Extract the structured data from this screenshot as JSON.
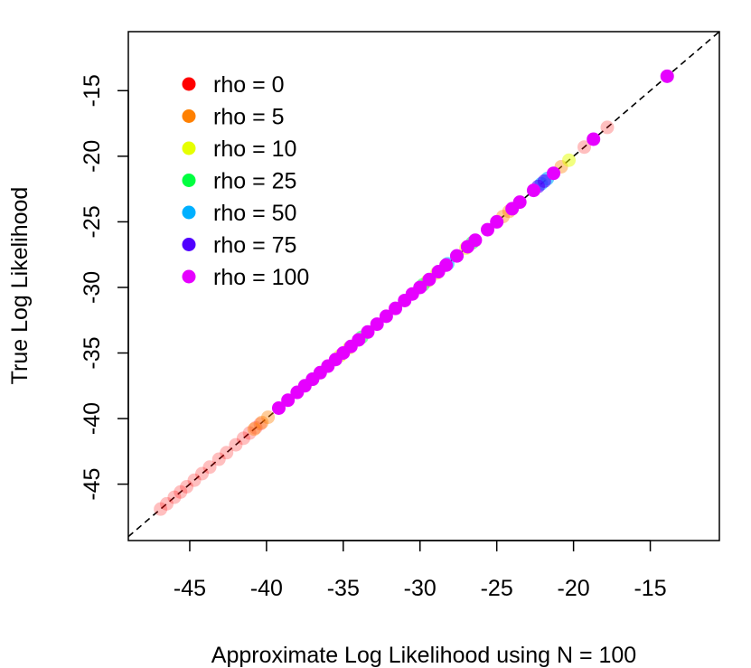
{
  "chart_data": {
    "type": "scatter",
    "title": "",
    "xlabel": "Approximate Log Likelihood using N = 100",
    "ylabel": "True Log Likelihood",
    "xlim": [
      -49.0,
      -10.5
    ],
    "ylim": [
      -49.3,
      -10.5
    ],
    "xticks": [
      -45,
      -40,
      -35,
      -30,
      -25,
      -20,
      -15
    ],
    "yticks": [
      -45,
      -40,
      -35,
      -30,
      -25,
      -20,
      -15
    ],
    "xtick_labels": [
      "-45",
      "-40",
      "-35",
      "-30",
      "-25",
      "-20",
      "-15"
    ],
    "ytick_labels": [
      "-45",
      "-40",
      "-35",
      "-30",
      "-25",
      "-20",
      "-15"
    ],
    "reference_line": {
      "slope": 1,
      "intercept": 0,
      "style": "dashed",
      "color": "#000000"
    },
    "grid": false,
    "legend_position": "top-left",
    "series": [
      {
        "name": "rho = 0",
        "color": "#FF0000",
        "opacity": 0.25,
        "x": [
          -46.9,
          -46.5,
          -46.0,
          -45.6,
          -45.2,
          -44.7,
          -44.2,
          -43.7,
          -43.1,
          -42.6,
          -42.0,
          -41.5,
          -41.1,
          -40.7,
          -40.4,
          -17.8,
          -19.3
        ],
        "y": [
          -46.9,
          -46.5,
          -46.0,
          -45.6,
          -45.2,
          -44.7,
          -44.2,
          -43.7,
          -43.1,
          -42.6,
          -42.0,
          -41.5,
          -41.1,
          -40.7,
          -40.4,
          -17.8,
          -19.3
        ]
      },
      {
        "name": "rho = 5",
        "color": "#FF8000",
        "opacity": 0.4,
        "x": [
          -40.8,
          -40.3,
          -39.9,
          -24.6,
          -24.2,
          -20.8
        ],
        "y": [
          -40.8,
          -40.3,
          -39.9,
          -24.6,
          -24.2,
          -20.8
        ]
      },
      {
        "name": "rho = 10",
        "color": "#E6FF00",
        "opacity": 0.5,
        "x": [
          -35.2,
          -34.6,
          -29.5,
          -28.9,
          -27.0,
          -20.3
        ],
        "y": [
          -35.2,
          -34.6,
          -29.5,
          -28.9,
          -27.0,
          -20.3
        ]
      },
      {
        "name": "rho = 25",
        "color": "#00FF40",
        "opacity": 0.5,
        "x": [
          -37.0,
          -33.8,
          -29.8,
          -26.6
        ],
        "y": [
          -37.0,
          -33.8,
          -29.8,
          -26.6
        ]
      },
      {
        "name": "rho = 50",
        "color": "#00B0FF",
        "opacity": 0.6,
        "x": [
          -28.2,
          -22.1,
          -21.7
        ],
        "y": [
          -28.2,
          -22.1,
          -21.7
        ]
      },
      {
        "name": "rho = 75",
        "color": "#5000FF",
        "opacity": 0.6,
        "x": [
          -27.6,
          -22.3,
          -21.9
        ],
        "y": [
          -27.6,
          -22.3,
          -21.9
        ]
      },
      {
        "name": "rho = 100",
        "color": "#E600FF",
        "opacity": 1.0,
        "x": [
          -39.2,
          -38.6,
          -38.0,
          -37.5,
          -37.0,
          -36.5,
          -36.0,
          -35.5,
          -35.0,
          -34.5,
          -34.0,
          -33.4,
          -32.8,
          -32.2,
          -31.6,
          -31.0,
          -30.5,
          -30.0,
          -29.4,
          -28.8,
          -28.3,
          -27.6,
          -26.9,
          -26.4,
          -25.6,
          -25.0,
          -24.0,
          -23.5,
          -22.6,
          -21.3,
          -18.7,
          -13.9
        ],
        "y": [
          -39.2,
          -38.6,
          -38.0,
          -37.5,
          -37.0,
          -36.5,
          -36.0,
          -35.5,
          -35.0,
          -34.5,
          -34.0,
          -33.4,
          -32.8,
          -32.2,
          -31.6,
          -31.0,
          -30.5,
          -30.0,
          -29.4,
          -28.8,
          -28.3,
          -27.6,
          -26.9,
          -26.4,
          -25.6,
          -25.0,
          -24.0,
          -23.5,
          -22.6,
          -21.3,
          -18.7,
          -13.9
        ]
      }
    ]
  }
}
